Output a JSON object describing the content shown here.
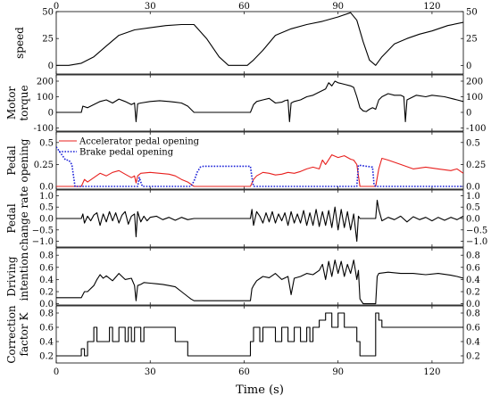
{
  "chart_data": {
    "type": "line",
    "xlabel": "Time (s)",
    "xlim": [
      0,
      130
    ],
    "xticks": [
      0,
      30,
      60,
      90,
      120
    ],
    "panels": [
      {
        "ylabel": [
          "speed"
        ],
        "ylim": [
          -8,
          50
        ],
        "yticks": [
          0,
          25,
          50
        ],
        "series": [
          {
            "color": "#000000",
            "style": "solid",
            "x": [
              0,
              4,
              8,
              12,
              16,
              20,
              25,
              30,
              35,
              40,
              44,
              48,
              52,
              55,
              58,
              61,
              63,
              66,
              70,
              75,
              80,
              85,
              90,
              94,
              96,
              98,
              100,
              102,
              104,
              108,
              112,
              116,
              120,
              125,
              130
            ],
            "y": [
              0,
              0,
              2,
              8,
              18,
              28,
              33,
              35,
              37,
              38,
              38,
              25,
              8,
              0,
              0,
              0,
              5,
              14,
              28,
              34,
              38,
              41,
              45,
              49,
              42,
              22,
              5,
              0,
              8,
              20,
              25,
              29,
              32,
              37,
              40
            ]
          }
        ]
      },
      {
        "ylabel": [
          "Motor",
          "torque"
        ],
        "ylim": [
          -120,
          240
        ],
        "yticks": [
          -100,
          0,
          100,
          200
        ],
        "series": [
          {
            "color": "#000000",
            "style": "solid",
            "x": [
              0,
              5,
              8,
              8.5,
              10,
              12,
              14,
              16,
              18,
              20,
              22,
              24,
              25,
              25.5,
              26,
              27,
              30,
              33,
              36,
              38,
              40,
              42,
              43,
              44,
              50,
              55,
              60,
              62,
              63,
              64,
              66,
              68,
              70,
              72,
              73,
              74,
              74.5,
              75,
              76,
              78,
              80,
              82,
              84,
              86,
              87,
              88,
              89,
              90,
              92,
              94,
              95,
              96,
              97,
              98,
              99,
              100,
              101,
              102,
              103,
              104,
              106,
              108,
              110,
              111,
              111.5,
              112,
              113,
              115,
              118,
              120,
              124,
              128,
              130
            ],
            "y": [
              0,
              0,
              0,
              40,
              30,
              50,
              70,
              80,
              60,
              85,
              70,
              50,
              60,
              -60,
              55,
              60,
              70,
              75,
              70,
              65,
              60,
              40,
              20,
              0,
              0,
              0,
              0,
              0,
              50,
              70,
              80,
              90,
              60,
              65,
              75,
              80,
              -60,
              60,
              70,
              80,
              100,
              110,
              130,
              150,
              190,
              170,
              200,
              190,
              180,
              170,
              160,
              100,
              30,
              10,
              5,
              20,
              30,
              20,
              80,
              100,
              120,
              110,
              110,
              100,
              -60,
              80,
              90,
              110,
              100,
              110,
              100,
              80,
              70
            ]
          }
        ]
      },
      {
        "ylabel": [
          "Pedal",
          "opening"
        ],
        "ylim": [
          -0.03,
          0.62
        ],
        "yticks": [
          0.0,
          0.25,
          0.5
        ],
        "legend": [
          {
            "label": "Accelerator pedal opening",
            "color": "#e8201e",
            "style": "solid"
          },
          {
            "label": "Brake pedal opening",
            "color": "#1a20d8",
            "style": "dotted"
          }
        ],
        "series": [
          {
            "name": "Accelerator pedal opening",
            "color": "#e8201e",
            "style": "solid",
            "x": [
              0,
              8,
              9,
              10,
              12,
              14,
              16,
              18,
              20,
              22,
              24,
              25,
              25.5,
              26,
              27,
              30,
              33,
              36,
              38,
              40,
              42,
              44,
              62,
              63,
              64,
              66,
              68,
              70,
              72,
              74,
              76,
              78,
              80,
              82,
              84,
              85,
              86,
              88,
              90,
              92,
              94,
              95,
              96,
              97,
              102,
              103,
              104,
              106,
              110,
              114,
              118,
              122,
              126,
              128,
              130
            ],
            "y": [
              0,
              0,
              0.08,
              0.05,
              0.1,
              0.15,
              0.12,
              0.16,
              0.18,
              0.14,
              0.1,
              0.12,
              0.04,
              0.12,
              0.15,
              0.16,
              0.15,
              0.14,
              0.12,
              0.08,
              0.05,
              0,
              0,
              0.08,
              0.12,
              0.16,
              0.15,
              0.13,
              0.14,
              0.16,
              0.15,
              0.17,
              0.2,
              0.22,
              0.2,
              0.3,
              0.25,
              0.36,
              0.33,
              0.35,
              0.31,
              0.3,
              0.25,
              0,
              0,
              0.2,
              0.32,
              0.3,
              0.25,
              0.2,
              0.22,
              0.2,
              0.18,
              0.2,
              0.15
            ]
          },
          {
            "name": "Brake pedal opening",
            "color": "#1a20d8",
            "style": "dotted",
            "x": [
              0,
              3,
              4,
              5,
              6,
              7,
              26,
              26.5,
              27.5,
              43,
              44,
              45,
              46,
              47,
              62,
              62.5,
              63,
              96,
              96.5,
              97,
              101,
              101.5,
              102,
              130
            ],
            "y": [
              0.45,
              0.3,
              0.3,
              0.25,
              0,
              0,
              0,
              0.1,
              0,
              0,
              0.06,
              0.16,
              0.22,
              0.23,
              0.23,
              0.1,
              0,
              0,
              0.24,
              0.24,
              0.22,
              0.02,
              0,
              0
            ]
          }
        ]
      },
      {
        "ylabel": [
          "Pedal",
          "change rate"
        ],
        "ylim": [
          -1.25,
          1.25
        ],
        "yticks": [
          -1.0,
          -0.5,
          0.0,
          0.5,
          1.0
        ],
        "series": [
          {
            "color": "#000000",
            "style": "solid",
            "x": [
              0,
              8,
              8.5,
              9,
              10,
              11,
              12,
              13,
              14,
              15,
              16,
              17,
              18,
              19,
              20,
              21,
              22,
              23,
              24,
              25,
              25.5,
              26,
              27,
              28,
              29,
              30,
              32,
              34,
              36,
              38,
              40,
              42,
              44,
              62,
              62.5,
              63,
              64,
              65,
              66,
              67,
              68,
              69,
              70,
              71,
              72,
              73,
              74,
              75,
              76,
              77,
              78,
              79,
              80,
              81,
              82,
              83,
              84,
              85,
              86,
              87,
              88,
              89,
              90,
              91,
              92,
              93,
              94,
              95,
              96,
              96.5,
              97,
              98,
              101,
              102,
              102.5,
              103,
              104,
              106,
              108,
              110,
              112,
              114,
              116,
              118,
              120,
              122,
              124,
              126,
              128,
              130
            ],
            "y": [
              0,
              0,
              0.2,
              -0.2,
              0.1,
              -0.1,
              0.15,
              0.25,
              -0.3,
              0.2,
              -0.15,
              0.3,
              -0.1,
              0.25,
              -0.2,
              0.15,
              0.3,
              -0.25,
              0.1,
              0.2,
              -0.8,
              0.3,
              -0.15,
              0.1,
              -0.1,
              0.05,
              0.1,
              -0.05,
              0.05,
              -0.08,
              0.05,
              -0.05,
              0,
              0,
              0.4,
              -0.3,
              0.3,
              0.1,
              -0.2,
              0.25,
              -0.15,
              0.3,
              -0.2,
              0.2,
              -0.1,
              0.25,
              -0.3,
              0.3,
              -0.2,
              0.2,
              -0.2,
              0.35,
              -0.3,
              0.25,
              -0.3,
              0.4,
              -0.35,
              0.3,
              -0.3,
              0.35,
              -0.4,
              0.5,
              -0.5,
              0.4,
              -0.4,
              0.3,
              -0.5,
              0.2,
              -1.0,
              0.1,
              0,
              0,
              0,
              0,
              0.8,
              0.4,
              -0.1,
              0.05,
              -0.05,
              0.1,
              -0.15,
              0.08,
              -0.05,
              0.05,
              -0.1,
              0.05,
              -0.08,
              0.05,
              -0.05,
              0.1
            ]
          }
        ]
      },
      {
        "ylabel": [
          "Driving",
          "intention"
        ],
        "ylim": [
          -0.02,
          0.92
        ],
        "yticks": [
          0.0,
          0.2,
          0.4,
          0.6,
          0.8
        ],
        "series": [
          {
            "color": "#000000",
            "style": "solid",
            "x": [
              0,
              8,
              9,
              10,
              12,
              13,
              14,
              15,
              16,
              18,
              20,
              22,
              24,
              25,
              25.5,
              26,
              27,
              28,
              30,
              32,
              34,
              36,
              38,
              40,
              42,
              43,
              44,
              62,
              62.5,
              63,
              64,
              66,
              68,
              70,
              72,
              74,
              75,
              76,
              78,
              80,
              82,
              84,
              85,
              86,
              87,
              88,
              89,
              90,
              91,
              92,
              93,
              94,
              95,
              96,
              96.5,
              97,
              98,
              101,
              102,
              102.5,
              103,
              106,
              110,
              114,
              118,
              122,
              126,
              128,
              130
            ],
            "y": [
              0.1,
              0.1,
              0.2,
              0.2,
              0.3,
              0.4,
              0.48,
              0.42,
              0.46,
              0.38,
              0.5,
              0.4,
              0.42,
              0.3,
              0.05,
              0.3,
              0.32,
              0.35,
              0.34,
              0.33,
              0.32,
              0.3,
              0.28,
              0.2,
              0.12,
              0.08,
              0.05,
              0.05,
              0.25,
              0.3,
              0.38,
              0.45,
              0.43,
              0.5,
              0.4,
              0.45,
              0.15,
              0.42,
              0.45,
              0.5,
              0.48,
              0.55,
              0.65,
              0.4,
              0.7,
              0.45,
              0.72,
              0.5,
              0.7,
              0.45,
              0.65,
              0.5,
              0.72,
              0.4,
              0.55,
              0.08,
              0,
              0,
              0,
              0.45,
              0.5,
              0.52,
              0.5,
              0.5,
              0.48,
              0.5,
              0.47,
              0.45,
              0.42
            ]
          }
        ]
      },
      {
        "ylabel": [
          "Correction",
          "factor K"
        ],
        "ylim": [
          0.1,
          0.9
        ],
        "yticks": [
          0.2,
          0.4,
          0.6,
          0.8
        ],
        "series": [
          {
            "color": "#000000",
            "style": "solid",
            "x": [
              0,
              8,
              8,
              9,
              9,
              10,
              10,
              12,
              12,
              13,
              13,
              17,
              17,
              18,
              18,
              20,
              20,
              22,
              22,
              23,
              23,
              24,
              24,
              25,
              25,
              27,
              27,
              28,
              28,
              30,
              30,
              34,
              34,
              38,
              38,
              42,
              42,
              62,
              62,
              63,
              63,
              65,
              65,
              66,
              66,
              70,
              70,
              72,
              72,
              74,
              74,
              76,
              76,
              78,
              78,
              80,
              80,
              81,
              81,
              82,
              82,
              84,
              84,
              86,
              86,
              88,
              88,
              90,
              90,
              92,
              92,
              94,
              94,
              96,
              96,
              97,
              97,
              102,
              102,
              103,
              103,
              104,
              104,
              106,
              106,
              130
            ],
            "y": [
              0.2,
              0.2,
              0.3,
              0.3,
              0.2,
              0.2,
              0.4,
              0.4,
              0.6,
              0.6,
              0.4,
              0.4,
              0.6,
              0.6,
              0.4,
              0.4,
              0.6,
              0.6,
              0.4,
              0.4,
              0.6,
              0.6,
              0.4,
              0.4,
              0.6,
              0.6,
              0.4,
              0.4,
              0.6,
              0.6,
              0.6,
              0.6,
              0.6,
              0.6,
              0.4,
              0.4,
              0.2,
              0.2,
              0.4,
              0.4,
              0.6,
              0.6,
              0.4,
              0.4,
              0.6,
              0.6,
              0.4,
              0.4,
              0.6,
              0.6,
              0.4,
              0.4,
              0.6,
              0.6,
              0.4,
              0.4,
              0.6,
              0.6,
              0.4,
              0.4,
              0.6,
              0.6,
              0.7,
              0.7,
              0.8,
              0.8,
              0.6,
              0.6,
              0.8,
              0.8,
              0.6,
              0.6,
              0.6,
              0.6,
              0.4,
              0.4,
              0.2,
              0.2,
              0.8,
              0.8,
              0.7,
              0.7,
              0.6,
              0.6,
              0.6,
              0.6
            ]
          }
        ]
      }
    ]
  }
}
